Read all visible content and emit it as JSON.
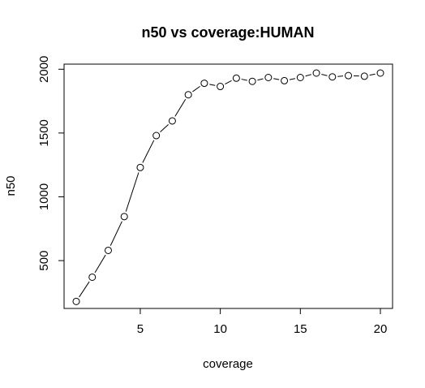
{
  "chart_data": {
    "type": "line",
    "title": "n50 vs coverage:HUMAN",
    "xlabel": "coverage",
    "ylabel": "n50",
    "xlim": [
      0.24,
      20.76
    ],
    "ylim": [
      125,
      2040
    ],
    "x_ticks": [
      5,
      10,
      15,
      20
    ],
    "y_ticks": [
      500,
      1000,
      1500,
      2000
    ],
    "x_tick_labels": [
      "5",
      "10",
      "15",
      "20"
    ],
    "y_tick_labels": [
      "500",
      "1000",
      "1500",
      "2000"
    ],
    "grid": false,
    "legend": "none",
    "marker": "open-circle",
    "line_color": "#000000",
    "series": [
      {
        "x": [
          1,
          2,
          3,
          4,
          5,
          6,
          7,
          8,
          9,
          10,
          11,
          12,
          13,
          14,
          15,
          16,
          17,
          18,
          19,
          20
        ],
        "y": [
          180,
          370,
          580,
          845,
          1230,
          1480,
          1595,
          1800,
          1890,
          1865,
          1930,
          1905,
          1935,
          1910,
          1935,
          1970,
          1940,
          1950,
          1945,
          1970
        ]
      }
    ]
  }
}
